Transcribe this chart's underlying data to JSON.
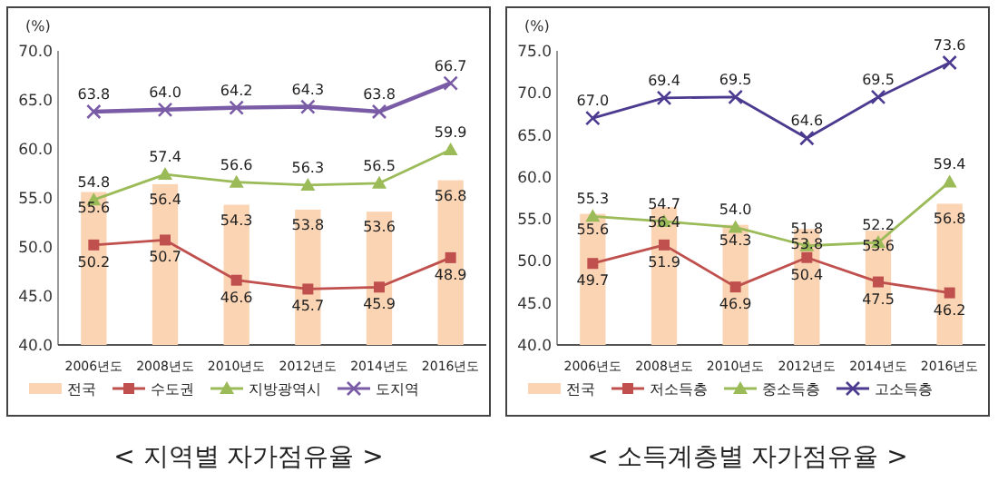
{
  "chart_data": [
    {
      "type": "line",
      "title": "< 지역별 자가점유율 >",
      "ylabel": "(%)",
      "categories": [
        "2006년도",
        "2008년도",
        "2010년도",
        "2012년도",
        "2014년도",
        "2016년도"
      ],
      "series": [
        {
          "name": "전국",
          "type": "bar",
          "color": "#fbd4b4",
          "values": [
            55.6,
            56.4,
            54.3,
            53.8,
            53.6,
            56.8
          ],
          "value_labels": [
            "55.6",
            "56.4",
            "54.3",
            "53.8",
            "53.6",
            "56.8"
          ]
        },
        {
          "name": "수도권",
          "color": "#c0504d",
          "marker": "square",
          "values": [
            50.2,
            50.7,
            46.6,
            45.7,
            45.9,
            48.9
          ],
          "value_labels": [
            "50.2",
            "50.7",
            "46.6",
            "45.7",
            "45.9",
            "48.9"
          ]
        },
        {
          "name": "지방광역시",
          "color": "#9bbb59",
          "marker": "triangle",
          "values": [
            54.8,
            57.4,
            56.6,
            56.3,
            56.5,
            59.9
          ],
          "value_labels": [
            "54.8",
            "57.4",
            "56.6",
            "56.3",
            "56.5",
            "59.9"
          ]
        },
        {
          "name": "도지역",
          "color": "#7a5ba6",
          "marker": "cross",
          "values": [
            63.8,
            64.0,
            64.2,
            64.3,
            63.8,
            66.7
          ],
          "value_labels": [
            "63.8",
            "64.0",
            "64.2",
            "64.3",
            "63.8",
            "66.7"
          ]
        }
      ],
      "ylim": [
        40,
        70
      ],
      "yticks": [
        {
          "value": 40,
          "label": "40.0"
        },
        {
          "value": 45,
          "label": "45.0"
        },
        {
          "value": 50,
          "label": "50.0"
        },
        {
          "value": 55,
          "label": "55.0"
        },
        {
          "value": 60,
          "label": "60.0"
        },
        {
          "value": 65,
          "label": "65.0"
        },
        {
          "value": 70,
          "label": "70.0"
        }
      ],
      "legend": "bottom",
      "grid": false
    },
    {
      "type": "line",
      "title": "< 소득계층별 자가점유율 >",
      "ylabel": "(%)",
      "categories": [
        "2006년도",
        "2008년도",
        "2010년도",
        "2012년도",
        "2014년도",
        "2016년도"
      ],
      "series": [
        {
          "name": "전국",
          "type": "bar",
          "color": "#fbd4b4",
          "values": [
            55.6,
            56.4,
            54.3,
            53.8,
            53.6,
            56.8
          ],
          "value_labels": [
            "55.6",
            "56.4",
            "54.3",
            "53.8",
            "53.6",
            "56.8"
          ]
        },
        {
          "name": "저소득층",
          "color": "#c0504d",
          "marker": "square",
          "values": [
            49.7,
            51.9,
            46.9,
            50.4,
            47.5,
            46.2
          ],
          "value_labels": [
            "49.7",
            "51.9",
            "46.9",
            "50.4",
            "47.5",
            "46.2"
          ]
        },
        {
          "name": "중소득층",
          "color": "#9bbb59",
          "marker": "triangle",
          "values": [
            55.3,
            54.7,
            54.0,
            51.8,
            52.2,
            59.4
          ],
          "value_labels": [
            "55.3",
            "54.7",
            "54.0",
            "51.8",
            "52.2",
            "59.4"
          ]
        },
        {
          "name": "고소득층",
          "color": "#4b3a8f",
          "marker": "cross",
          "values": [
            67.0,
            69.4,
            69.5,
            64.6,
            69.5,
            73.6
          ],
          "value_labels": [
            "67.0",
            "69.4",
            "69.5",
            "64.6",
            "69.5",
            "73.6"
          ]
        }
      ],
      "ylim": [
        40,
        75
      ],
      "yticks": [
        {
          "value": 40,
          "label": "40.0"
        },
        {
          "value": 45,
          "label": "45.0"
        },
        {
          "value": 50,
          "label": "50.0"
        },
        {
          "value": 55,
          "label": "55.0"
        },
        {
          "value": 60,
          "label": "60.0"
        },
        {
          "value": 65,
          "label": "65.0"
        },
        {
          "value": 70,
          "label": "70.0"
        },
        {
          "value": 75,
          "label": "75.0"
        }
      ],
      "legend": "bottom",
      "grid": false
    }
  ]
}
